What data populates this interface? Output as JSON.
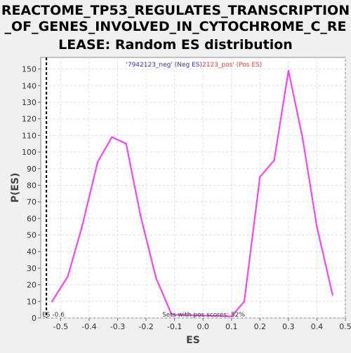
{
  "chart_data": {
    "type": "line",
    "title_lines": [
      "REACTOME_TP53_REGULATES_TRANSCRIPTION",
      "_OF_GENES_INVOLVED_IN_CYTOCHROME_C_RE",
      "LEASE: Random ES distribution"
    ],
    "xlabel": "ES",
    "ylabel": "P(ES)",
    "xlim": [
      -0.57,
      0.5
    ],
    "ylim": [
      0,
      157
    ],
    "x_ticks": [
      -0.5,
      -0.4,
      -0.3,
      -0.2,
      -0.1,
      0.0,
      0.1,
      0.2,
      0.3,
      0.4,
      0.5
    ],
    "x_tick_labels": [
      "-0.5",
      "-0.4",
      "-0.3",
      "-0.2",
      "-0.1",
      "0.0",
      "0.1",
      "0.2",
      "0.3",
      "0.4",
      "0.5"
    ],
    "y_ticks": [
      0,
      10,
      20,
      30,
      40,
      50,
      60,
      70,
      80,
      90,
      100,
      110,
      120,
      130,
      140,
      150
    ],
    "y_tick_labels": [
      "0",
      "10",
      "20",
      "30",
      "40",
      "50",
      "60",
      "70",
      "80",
      "90",
      "100",
      "110",
      "120",
      "130",
      "140",
      "150"
    ],
    "grid": true,
    "colors": {
      "line": "#ff33ff",
      "neg_legend": "#3333cc",
      "pos_legend": "#ff3333",
      "marker": "#000000"
    },
    "legend": {
      "neg": "'7942123_neg' (Neg ES)",
      "pos": "2123_pos' (Pos ES)"
    },
    "marker_x": -0.55,
    "annotations": {
      "es": "ES -0.6",
      "sets": "Sets with pos scores: 52%"
    },
    "series": [
      {
        "x": [
          -0.53,
          -0.475,
          -0.425,
          -0.37,
          -0.32,
          -0.27,
          -0.22,
          -0.165,
          -0.11,
          0.1,
          0.145,
          0.2,
          0.25,
          0.3,
          0.35,
          0.4,
          0.455
        ],
        "y": [
          10,
          25,
          55,
          94,
          109,
          105,
          62,
          24,
          2,
          1,
          10,
          85,
          95,
          149,
          108,
          55,
          14
        ]
      }
    ]
  }
}
